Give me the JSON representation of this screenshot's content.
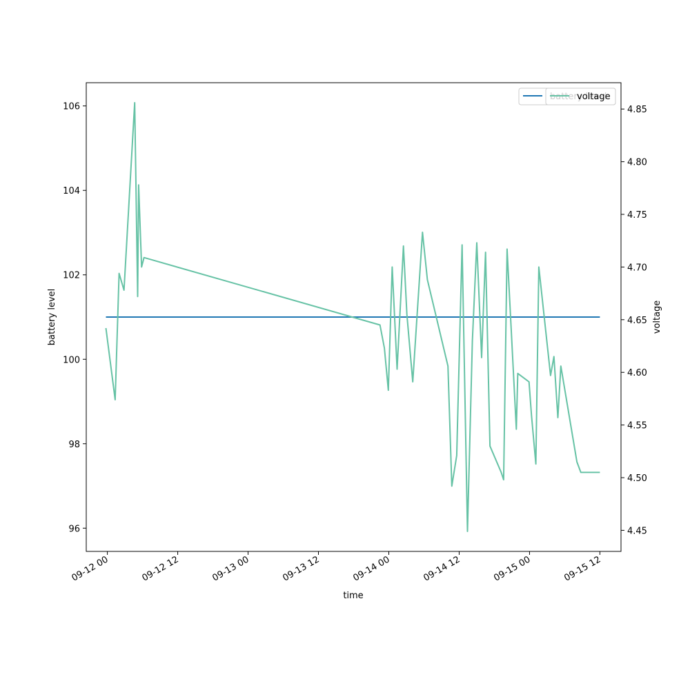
{
  "chart_data": {
    "type": "line",
    "xlabel": "time",
    "ylabel_left": "battery level",
    "ylabel_right": "voltage",
    "x_range": [
      "2023-09-11T20:24",
      "2023-09-15T15:36"
    ],
    "x_ticks": [
      {
        "t": "2023-09-12T00:00",
        "label": "09-12 00"
      },
      {
        "t": "2023-09-12T12:00",
        "label": "09-12 12"
      },
      {
        "t": "2023-09-13T00:00",
        "label": "09-13 00"
      },
      {
        "t": "2023-09-13T12:00",
        "label": "09-13 12"
      },
      {
        "t": "2023-09-14T00:00",
        "label": "09-14 00"
      },
      {
        "t": "2023-09-14T12:00",
        "label": "09-14 12"
      },
      {
        "t": "2023-09-15T00:00",
        "label": "09-15 00"
      },
      {
        "t": "2023-09-15T12:00",
        "label": "09-15 12"
      }
    ],
    "ylim_left": [
      95.45,
      106.55
    ],
    "yticks_left": [
      96,
      98,
      100,
      102,
      104,
      106
    ],
    "ylim_right": [
      4.43,
      4.875
    ],
    "yticks_right": [
      4.45,
      4.5,
      4.55,
      4.6,
      4.65,
      4.7,
      4.75,
      4.8,
      4.85
    ],
    "yticks_right_labels": [
      "4.45",
      "4.50",
      "4.55",
      "4.60",
      "4.65",
      "4.70",
      "4.75",
      "4.80",
      "4.85"
    ],
    "legend": {
      "placement": "top-right",
      "entries": [
        {
          "name": "battery level",
          "color": "#1f77b4"
        },
        {
          "name": "voltage",
          "color": "#66c2a5"
        }
      ]
    },
    "series": [
      {
        "name": "battery level",
        "axis": "left",
        "color": "#1f77b4",
        "x": [
          "2023-09-11T23:45",
          "2023-09-15T12:00"
        ],
        "values": [
          101,
          101
        ]
      },
      {
        "name": "voltage",
        "axis": "right",
        "color": "#66c2a5",
        "x": [
          "2023-09-11T23:45",
          "2023-09-12T01:20",
          "2023-09-12T02:00",
          "2023-09-12T02:50",
          "2023-09-12T04:40",
          "2023-09-12T05:10",
          "2023-09-12T05:20",
          "2023-09-12T05:50",
          "2023-09-12T06:15",
          "2023-09-13T22:30",
          "2023-09-13T23:15",
          "2023-09-13T23:55",
          "2023-09-14T00:35",
          "2023-09-14T01:25",
          "2023-09-14T02:30",
          "2023-09-14T03:05",
          "2023-09-14T04:05",
          "2023-09-14T05:45",
          "2023-09-14T06:35",
          "2023-09-14T10:05",
          "2023-09-14T10:45",
          "2023-09-14T11:35",
          "2023-09-14T12:30",
          "2023-09-14T13:25",
          "2023-09-14T14:15",
          "2023-09-14T15:00",
          "2023-09-14T15:50",
          "2023-09-14T16:30",
          "2023-09-14T17:15",
          "2023-09-14T19:10",
          "2023-09-14T19:35",
          "2023-09-14T20:10",
          "2023-09-14T21:45",
          "2023-09-14T22:00",
          "2023-09-14T23:55",
          "2023-09-15T00:20",
          "2023-09-15T01:05",
          "2023-09-15T01:35",
          "2023-09-15T03:35",
          "2023-09-15T04:10",
          "2023-09-15T04:50",
          "2023-09-15T05:20",
          "2023-09-15T08:05",
          "2023-09-15T08:45",
          "2023-09-15T10:50",
          "2023-09-15T12:00"
        ],
        "values": [
          4.642,
          4.574,
          4.694,
          4.678,
          4.856,
          4.672,
          4.778,
          4.7,
          4.709,
          4.645,
          4.623,
          4.583,
          4.7,
          4.603,
          4.72,
          4.655,
          4.591,
          4.733,
          4.688,
          4.606,
          4.492,
          4.521,
          4.721,
          4.449,
          4.63,
          4.723,
          4.614,
          4.714,
          4.53,
          4.505,
          4.498,
          4.717,
          4.546,
          4.599,
          4.591,
          4.559,
          4.513,
          4.7,
          4.597,
          4.615,
          4.557,
          4.606,
          4.515,
          4.505,
          4.505,
          4.505
        ]
      }
    ]
  }
}
